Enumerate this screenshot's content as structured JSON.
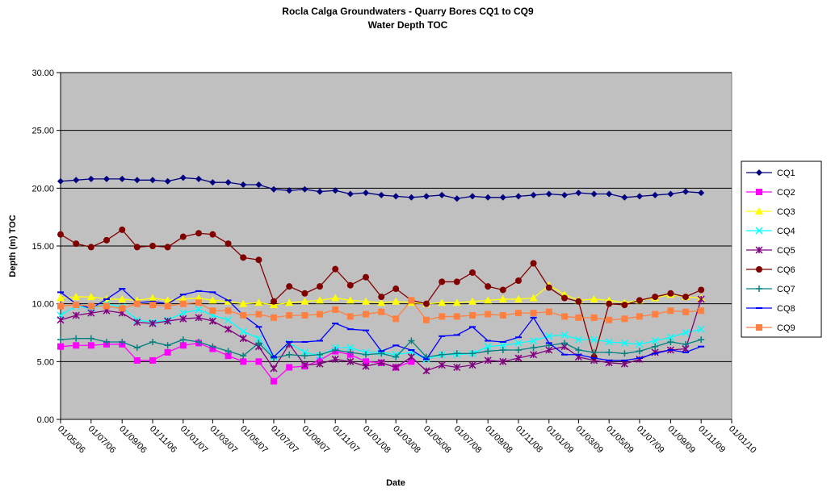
{
  "chart_data": {
    "type": "line",
    "title": "Rocla Calga Groundwaters - Quarry Bores CQ1 to CQ9",
    "subtitle": "Water Depth TOC",
    "xlabel": "Date",
    "ylabel": "Depth (m) TOC",
    "x": [
      "2006-05-01",
      "2006-06-01",
      "2006-07-01",
      "2006-08-01",
      "2006-09-01",
      "2006-10-01",
      "2006-11-01",
      "2006-12-01",
      "2007-01-01",
      "2007-02-01",
      "2007-03-01",
      "2007-04-01",
      "2007-05-01",
      "2007-06-01",
      "2007-07-01",
      "2007-08-01",
      "2007-09-01",
      "2007-10-01",
      "2007-11-01",
      "2007-12-01",
      "2008-01-01",
      "2008-02-01",
      "2008-03-01",
      "2008-04-01",
      "2008-05-01",
      "2008-06-01",
      "2008-07-01",
      "2008-08-01",
      "2008-09-01",
      "2008-10-01",
      "2008-11-01",
      "2008-12-01",
      "2009-01-01",
      "2009-02-01",
      "2009-03-01",
      "2009-04-01",
      "2009-05-01",
      "2009-06-01",
      "2009-07-01",
      "2009-08-01",
      "2009-09-01",
      "2009-10-01",
      "2009-11-01"
    ],
    "xlim": [
      "2006-05-01",
      "2010-01-01"
    ],
    "xticks": [
      {
        "value": "2006-05-01",
        "label": "01/05/06"
      },
      {
        "value": "2006-07-01",
        "label": "01/07/06"
      },
      {
        "value": "2006-09-01",
        "label": "01/09/06"
      },
      {
        "value": "2006-11-01",
        "label": "01/11/06"
      },
      {
        "value": "2007-01-01",
        "label": "01/01/07"
      },
      {
        "value": "2007-03-01",
        "label": "01/03/07"
      },
      {
        "value": "2007-05-01",
        "label": "01/05/07"
      },
      {
        "value": "2007-07-01",
        "label": "01/07/07"
      },
      {
        "value": "2007-09-01",
        "label": "01/09/07"
      },
      {
        "value": "2007-11-01",
        "label": "01/11/07"
      },
      {
        "value": "2008-01-01",
        "label": "01/01/08"
      },
      {
        "value": "2008-03-01",
        "label": "01/03/08"
      },
      {
        "value": "2008-05-01",
        "label": "01/05/08"
      },
      {
        "value": "2008-07-01",
        "label": "01/07/08"
      },
      {
        "value": "2008-09-01",
        "label": "01/09/08"
      },
      {
        "value": "2008-11-01",
        "label": "01/11/08"
      },
      {
        "value": "2009-01-01",
        "label": "01/01/09"
      },
      {
        "value": "2009-03-01",
        "label": "01/03/09"
      },
      {
        "value": "2009-05-01",
        "label": "01/05/09"
      },
      {
        "value": "2009-07-01",
        "label": "01/07/09"
      },
      {
        "value": "2009-09-01",
        "label": "01/09/09"
      },
      {
        "value": "2009-11-01",
        "label": "01/11/09"
      },
      {
        "value": "2010-01-01",
        "label": "01/01/10"
      }
    ],
    "ylim": [
      0,
      30
    ],
    "yticks": [
      {
        "value": 0,
        "label": "0.00"
      },
      {
        "value": 5,
        "label": "5.00"
      },
      {
        "value": 10,
        "label": "10.00"
      },
      {
        "value": 15,
        "label": "15.00"
      },
      {
        "value": 20,
        "label": "20.00"
      },
      {
        "value": 25,
        "label": "25.00"
      },
      {
        "value": 30,
        "label": "30.00"
      }
    ],
    "grid": true,
    "legend": "right",
    "series": [
      {
        "name": "CQ1",
        "color": "#000080",
        "marker": "diamond",
        "values": [
          20.6,
          20.7,
          20.8,
          20.8,
          20.8,
          20.7,
          20.7,
          20.6,
          20.9,
          20.8,
          20.5,
          20.5,
          20.3,
          20.3,
          19.9,
          19.8,
          19.9,
          19.7,
          19.8,
          19.5,
          19.6,
          19.4,
          19.3,
          19.2,
          19.3,
          19.4,
          19.1,
          19.3,
          19.2,
          19.2,
          19.3,
          19.4,
          19.5,
          19.4,
          19.6,
          19.5,
          19.5,
          19.2,
          19.3,
          19.4,
          19.5,
          19.7,
          19.6
        ]
      },
      {
        "name": "CQ2",
        "color": "#ff00ff",
        "marker": "square",
        "values": [
          6.3,
          6.4,
          6.4,
          6.5,
          6.5,
          5.1,
          5.1,
          5.8,
          6.4,
          6.6,
          6.1,
          5.5,
          5.0,
          5.0,
          3.3,
          4.5,
          4.6,
          5.1,
          5.9,
          5.6,
          5.0,
          4.9,
          4.5,
          5.0,
          null,
          null,
          null,
          null,
          null,
          null,
          null,
          null,
          null,
          null,
          null,
          null,
          null,
          null,
          null,
          null,
          null,
          null,
          null
        ]
      },
      {
        "name": "CQ3",
        "color": "#ffff00",
        "marker": "triangle",
        "values": [
          10.5,
          10.6,
          10.6,
          10.4,
          10.4,
          10.3,
          10.5,
          10.3,
          10.4,
          10.5,
          10.3,
          10.2,
          10.0,
          10.1,
          9.9,
          10.1,
          10.2,
          10.3,
          10.5,
          10.3,
          10.2,
          10.1,
          10.2,
          10.1,
          10.0,
          10.1,
          10.1,
          10.2,
          10.3,
          10.4,
          10.4,
          10.5,
          11.6,
          10.8,
          10.3,
          10.4,
          10.3,
          10.1,
          10.3,
          10.5,
          10.8,
          10.6,
          10.5
        ]
      },
      {
        "name": "CQ4",
        "color": "#00ffff",
        "marker": "x",
        "values": [
          9.0,
          9.8,
          9.6,
          10.0,
          9.7,
          8.6,
          8.4,
          8.6,
          9.2,
          9.5,
          9.0,
          8.6,
          7.6,
          7.0,
          5.4,
          6.6,
          5.8,
          5.5,
          6.2,
          6.2,
          5.8,
          5.8,
          5.6,
          5.8,
          5.2,
          5.6,
          5.6,
          5.7,
          6.3,
          6.4,
          6.6,
          6.8,
          7.2,
          7.3,
          6.9,
          6.9,
          6.7,
          6.6,
          6.5,
          6.8,
          7.1,
          7.5,
          7.8
        ]
      },
      {
        "name": "CQ5",
        "color": "#800080",
        "marker": "star",
        "values": [
          8.6,
          9.0,
          9.2,
          9.4,
          9.2,
          8.4,
          8.3,
          8.5,
          8.7,
          8.8,
          8.5,
          7.8,
          7.0,
          6.3,
          4.4,
          6.5,
          4.7,
          4.8,
          5.2,
          5.0,
          4.6,
          4.9,
          4.5,
          5.4,
          4.2,
          4.7,
          4.5,
          4.7,
          5.1,
          5.0,
          5.3,
          5.6,
          6.0,
          6.3,
          5.4,
          5.1,
          4.9,
          4.8,
          5.2,
          5.8,
          6.0,
          6.1,
          10.4
        ]
      },
      {
        "name": "CQ6",
        "color": "#800000",
        "marker": "circle",
        "values": [
          16.0,
          15.2,
          14.9,
          15.5,
          16.4,
          14.9,
          15.0,
          14.9,
          15.8,
          16.1,
          16.0,
          15.2,
          14.0,
          13.8,
          10.2,
          11.5,
          10.9,
          11.5,
          13.0,
          11.6,
          12.3,
          10.6,
          11.3,
          10.3,
          10.0,
          11.9,
          11.9,
          12.7,
          11.5,
          11.2,
          12.0,
          13.5,
          11.4,
          10.5,
          10.2,
          5.4,
          10.0,
          9.9,
          10.3,
          10.6,
          10.9,
          10.6,
          11.2
        ]
      },
      {
        "name": "CQ7",
        "color": "#008080",
        "marker": "plus",
        "values": [
          6.9,
          7.0,
          7.0,
          6.7,
          6.7,
          6.2,
          6.7,
          6.4,
          6.9,
          6.7,
          6.3,
          5.9,
          5.5,
          6.6,
          5.3,
          5.6,
          5.5,
          5.6,
          6.0,
          5.8,
          5.6,
          5.7,
          5.4,
          6.8,
          5.4,
          5.6,
          5.7,
          5.7,
          5.9,
          6.0,
          6.0,
          6.2,
          6.4,
          6.6,
          6.0,
          5.8,
          5.8,
          5.7,
          5.9,
          6.3,
          6.7,
          6.5,
          6.9
        ]
      },
      {
        "name": "CQ8",
        "color": "#0000ff",
        "marker": "dash",
        "values": [
          11.0,
          10.0,
          9.6,
          10.4,
          11.3,
          10.1,
          10.2,
          10.0,
          10.8,
          11.1,
          11.0,
          10.3,
          9.0,
          8.0,
          5.4,
          6.7,
          6.7,
          6.8,
          8.3,
          7.8,
          7.7,
          5.9,
          6.4,
          6.0,
          5.2,
          7.2,
          7.3,
          8.0,
          6.8,
          6.7,
          7.1,
          8.8,
          6.6,
          5.6,
          5.6,
          5.3,
          5.1,
          5.1,
          5.3,
          5.7,
          6.0,
          5.8,
          6.3
        ]
      },
      {
        "name": "CQ9",
        "color": "#ff8040",
        "marker": "square",
        "values": [
          9.8,
          9.9,
          9.8,
          9.8,
          9.6,
          10.0,
          9.9,
          9.8,
          10.0,
          10.1,
          9.4,
          9.4,
          9.0,
          9.1,
          8.8,
          9.0,
          9.0,
          9.1,
          9.5,
          8.9,
          9.1,
          9.3,
          8.7,
          10.3,
          8.6,
          8.9,
          8.9,
          9.0,
          9.1,
          9.0,
          9.2,
          9.2,
          9.3,
          8.9,
          8.8,
          8.8,
          8.6,
          8.7,
          8.9,
          9.1,
          9.4,
          9.3,
          9.4
        ]
      }
    ]
  }
}
